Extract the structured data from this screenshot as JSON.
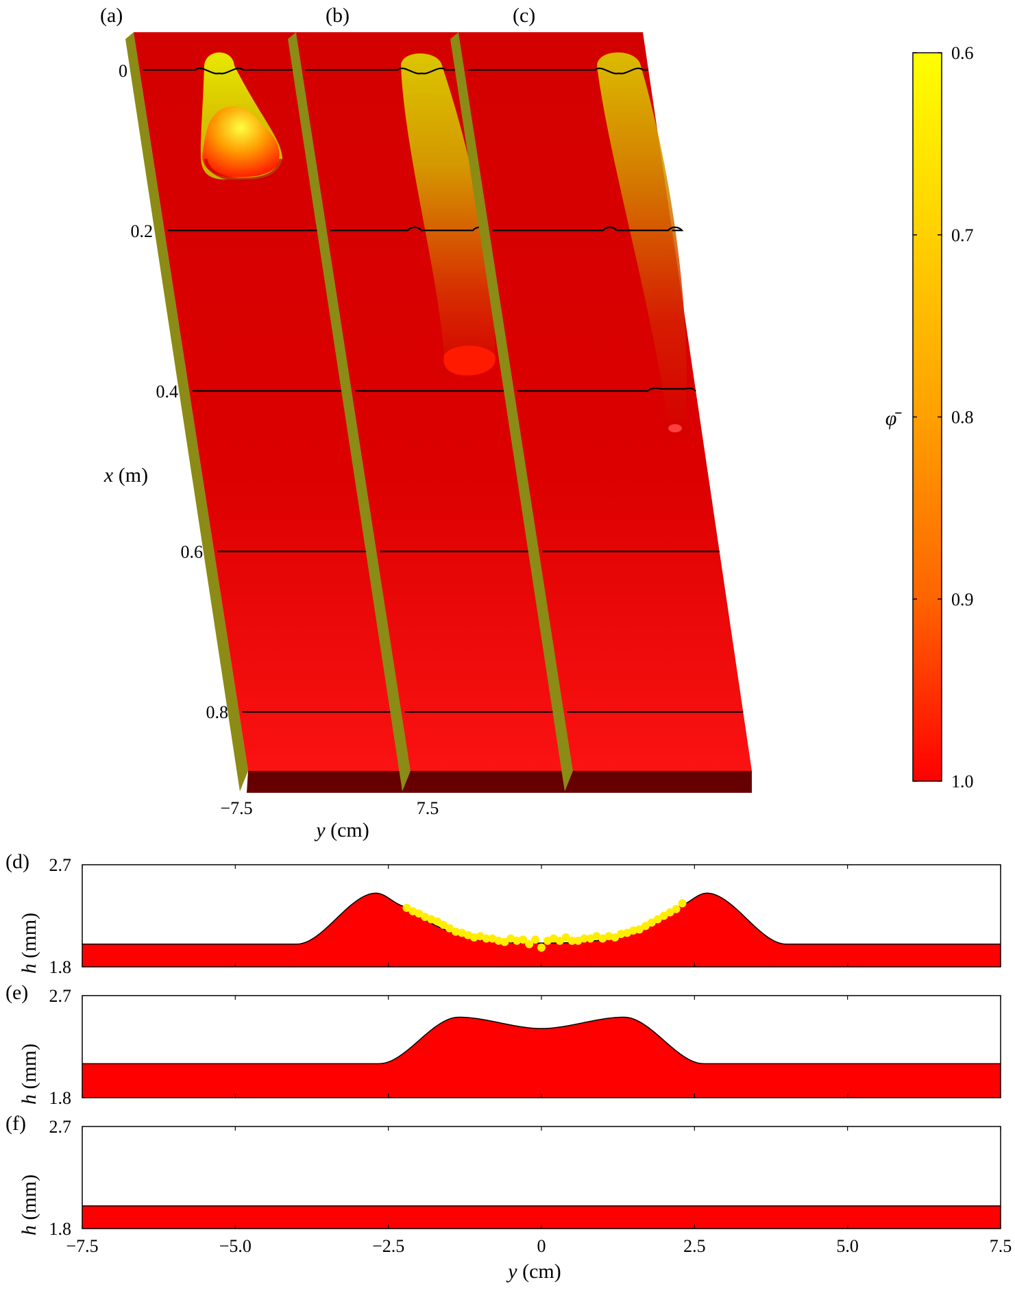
{
  "panel_labels": [
    "(a)",
    "(b)",
    "(c)",
    "(d)",
    "(e)",
    "(f)"
  ],
  "top": {
    "x_axis": {
      "var": "x",
      "unit": " (m)",
      "ticks": [
        "0",
        "0.2",
        "0.4",
        "0.6",
        "0.8"
      ],
      "tick_values": [
        0,
        0.2,
        0.4,
        0.6,
        0.8
      ]
    },
    "y_axis": {
      "var": "y",
      "unit": " (cm)",
      "ticks": [
        "−7.5",
        "7.5"
      ]
    },
    "colorbar": {
      "label": "φ̄",
      "ticks": [
        "0.6",
        "0.7",
        "0.8",
        "0.9",
        "1.0"
      ],
      "tick_values": [
        0.6,
        0.7,
        0.8,
        0.9,
        1.0
      ],
      "colors": [
        "#ffff00",
        "#ffd000",
        "#ffa000",
        "#ff6400",
        "#ff0000"
      ]
    },
    "colors": {
      "slab_base": "#d60000",
      "slab_light": "#fa1010",
      "plume": "#d4d400",
      "plume_tip": "#ff2a00",
      "slab_side": "#8b8b16",
      "slab_front": "#660000"
    }
  },
  "chart_data": [
    {
      "panel": "(d)",
      "type": "area",
      "ylabel_var": "h",
      "ylabel_unit": " (mm)",
      "xlim": [
        -7.5,
        7.5
      ],
      "ylim": [
        1.8,
        2.7
      ],
      "yticks": [
        "2.7",
        "1.8"
      ],
      "profile": {
        "base": 2.0,
        "ridges": [
          {
            "center": -2.7,
            "peak": 2.45
          },
          {
            "center": 2.7,
            "peak": 2.45
          }
        ],
        "trough": 2.01,
        "inner_edge": 2.2,
        "outer_edge": 4.0
      },
      "fill": "#ff0000",
      "scatter": {
        "color": "#ffee00",
        "points": [
          [
            -2.2,
            2.32
          ],
          [
            -2.1,
            2.29
          ],
          [
            -2.0,
            2.27
          ],
          [
            -1.9,
            2.24
          ],
          [
            -1.8,
            2.22
          ],
          [
            -1.7,
            2.2
          ],
          [
            -1.6,
            2.17
          ],
          [
            -1.5,
            2.14
          ],
          [
            -1.4,
            2.11
          ],
          [
            -1.3,
            2.1
          ],
          [
            -1.2,
            2.08
          ],
          [
            -1.1,
            2.06
          ],
          [
            -1.0,
            2.07
          ],
          [
            -0.9,
            2.05
          ],
          [
            -0.8,
            2.05
          ],
          [
            -0.7,
            2.03
          ],
          [
            -0.6,
            2.02
          ],
          [
            -0.5,
            2.05
          ],
          [
            -0.4,
            2.03
          ],
          [
            -0.3,
            2.04
          ],
          [
            -0.2,
            2.0
          ],
          [
            -0.1,
            2.04
          ],
          [
            0.0,
            1.97
          ],
          [
            0.1,
            2.03
          ],
          [
            0.2,
            2.05
          ],
          [
            0.3,
            2.03
          ],
          [
            0.4,
            2.06
          ],
          [
            0.5,
            2.03
          ],
          [
            0.6,
            2.03
          ],
          [
            0.7,
            2.05
          ],
          [
            0.8,
            2.05
          ],
          [
            0.9,
            2.07
          ],
          [
            1.0,
            2.05
          ],
          [
            1.1,
            2.07
          ],
          [
            1.2,
            2.06
          ],
          [
            1.3,
            2.09
          ],
          [
            1.4,
            2.1
          ],
          [
            1.5,
            2.12
          ],
          [
            1.6,
            2.13
          ],
          [
            1.7,
            2.16
          ],
          [
            1.8,
            2.19
          ],
          [
            1.9,
            2.22
          ],
          [
            2.0,
            2.25
          ],
          [
            2.1,
            2.28
          ],
          [
            2.2,
            2.31
          ],
          [
            2.3,
            2.36
          ]
        ]
      }
    },
    {
      "panel": "(e)",
      "type": "area",
      "ylabel_var": "h",
      "ylabel_unit": " (mm)",
      "xlim": [
        -7.5,
        7.5
      ],
      "ylim": [
        1.8,
        2.7
      ],
      "yticks": [
        "2.7",
        "1.8"
      ],
      "profile": {
        "base": 2.1,
        "ridges": [
          {
            "center": -1.35,
            "peak": 2.51
          },
          {
            "center": 1.35,
            "peak": 2.51
          }
        ],
        "trough": 2.41,
        "inner_edge": 0.0,
        "outer_edge": 2.55
      },
      "fill": "#ff0000"
    },
    {
      "panel": "(f)",
      "type": "area",
      "ylabel_var": "h",
      "ylabel_unit": " (mm)",
      "xlim": [
        -7.5,
        7.5
      ],
      "ylim": [
        1.8,
        2.7
      ],
      "yticks": [
        "2.7",
        "1.8"
      ],
      "xticks": [
        "−7.5",
        "−5.0",
        "−2.5",
        "0",
        "2.5",
        "5.0",
        "7.5"
      ],
      "xtick_values": [
        -7.5,
        -5.0,
        -2.5,
        0,
        2.5,
        5.0,
        7.5
      ],
      "xlabel_var": "y",
      "xlabel_unit": " (cm)",
      "profile": {
        "base": 2.0
      },
      "fill": "#ff0000"
    }
  ]
}
